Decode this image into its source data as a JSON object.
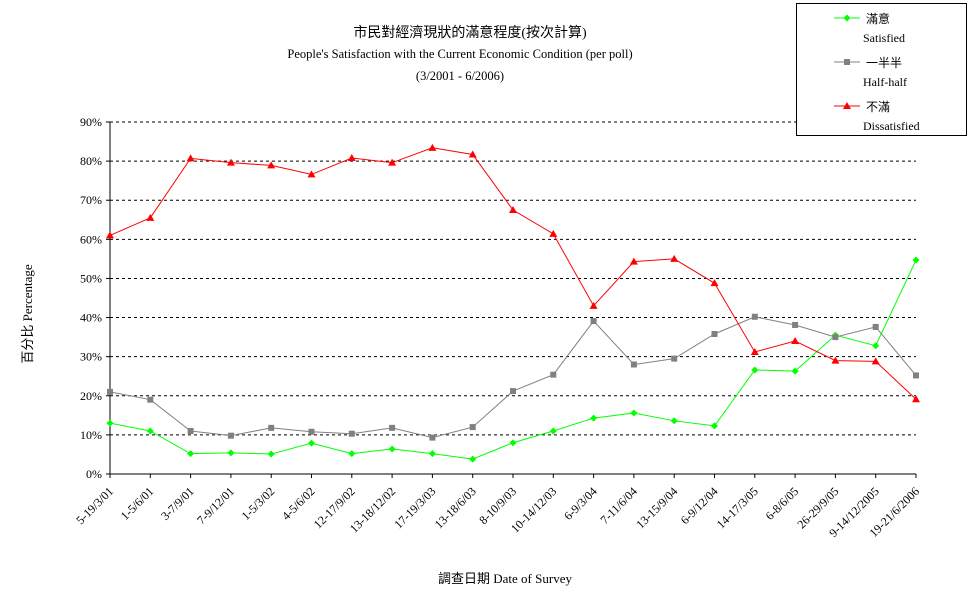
{
  "chart_data": {
    "type": "line",
    "title": "市民對經濟現狀的滿意程度(按次計算)",
    "subtitle": "People's Satisfaction with the Current Economic Condition  (per poll)",
    "period": "(3/2001 - 6/2006)",
    "xlabel": "調查日期 Date of Survey",
    "ylabel": "百分比 Percentage",
    "ylim": [
      0,
      90
    ],
    "yticks": [
      "0%",
      "10%",
      "20%",
      "30%",
      "40%",
      "50%",
      "60%",
      "70%",
      "80%",
      "90%"
    ],
    "grid": true,
    "legend_position": "top-right",
    "categories": [
      "5-19/3/01",
      "1-5/6/01",
      "3-7/9/01",
      "7-9/12/01",
      "1-5/3/02",
      "4-5/6/02",
      "12-17/9/02",
      "13-18/12/02",
      "17-19/3/03",
      "13-18/6/03",
      "8-10/9/03",
      "10-14/12/03",
      "6-9/3/04",
      "7-11/6/04",
      "13-15/9/04",
      "6-9/12/04",
      "14-17/3/05",
      "6-8/6/05",
      "26-29/9/05",
      "9-14/12/2005",
      "19-21/6/2006"
    ],
    "series": [
      {
        "name_zh": "滿意",
        "name_en": "Satisfied",
        "color": "#00ff00",
        "marker": "diamond",
        "values": [
          13.0,
          11.0,
          5.2,
          5.4,
          5.1,
          7.9,
          5.2,
          6.4,
          5.2,
          3.8,
          8.0,
          11.0,
          14.3,
          15.6,
          13.6,
          12.3,
          26.6,
          26.3,
          35.5,
          32.8,
          54.7
        ]
      },
      {
        "name_zh": "一半半",
        "name_en": "Half-half",
        "color": "#808080",
        "marker": "square",
        "values": [
          21.0,
          19.0,
          11.0,
          9.8,
          11.8,
          10.8,
          10.3,
          11.8,
          9.3,
          12.0,
          21.2,
          25.4,
          39.1,
          28.0,
          29.5,
          35.8,
          40.2,
          38.1,
          35.0,
          37.6,
          25.2
        ]
      },
      {
        "name_zh": "不滿",
        "name_en": "Dissatisfied",
        "color": "#ff0000",
        "marker": "triangle",
        "values": [
          61.0,
          65.5,
          80.7,
          79.6,
          78.9,
          76.6,
          80.8,
          79.6,
          83.4,
          81.7,
          67.5,
          61.4,
          43.0,
          54.3,
          55.0,
          48.8,
          31.2,
          34.0,
          29.0,
          28.8,
          19.1
        ]
      }
    ]
  }
}
